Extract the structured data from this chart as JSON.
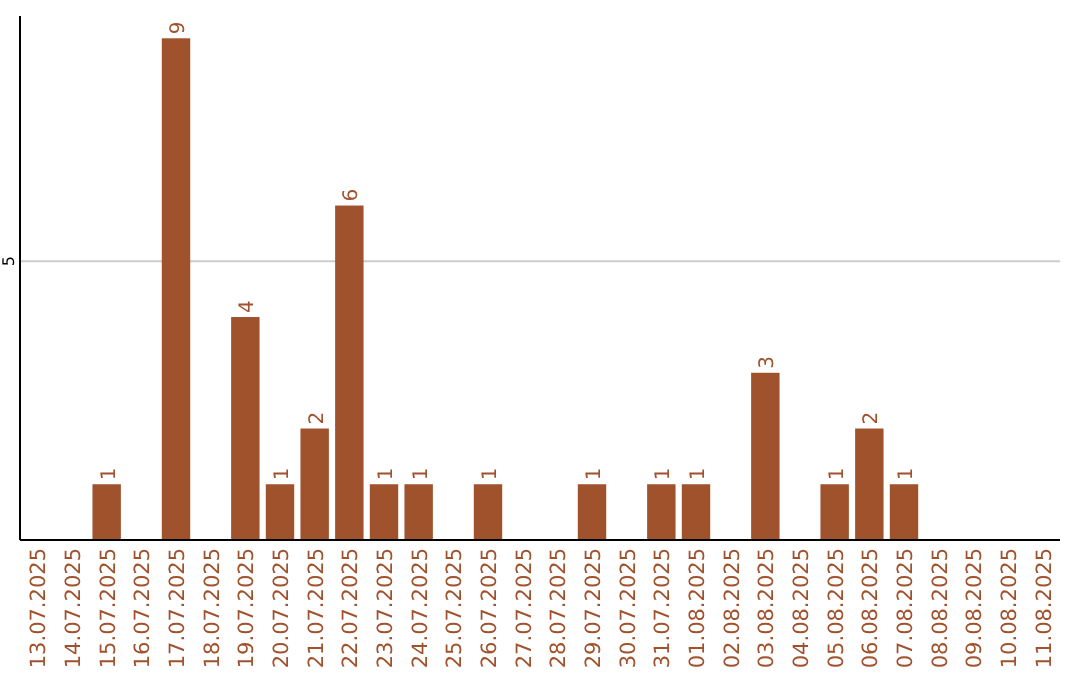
{
  "chart_data": {
    "type": "bar",
    "categories": [
      "13.07.2025",
      "14.07.2025",
      "15.07.2025",
      "16.07.2025",
      "17.07.2025",
      "18.07.2025",
      "19.07.2025",
      "20.07.2025",
      "21.07.2025",
      "22.07.2025",
      "23.07.2025",
      "24.07.2025",
      "25.07.2025",
      "26.07.2025",
      "27.07.2025",
      "28.07.2025",
      "29.07.2025",
      "30.07.2025",
      "31.07.2025",
      "01.08.2025",
      "02.08.2025",
      "03.08.2025",
      "04.08.2025",
      "05.08.2025",
      "06.08.2025",
      "07.08.2025",
      "08.08.2025",
      "09.08.2025",
      "10.08.2025",
      "11.08.2025"
    ],
    "values": [
      null,
      null,
      1,
      null,
      9,
      null,
      4,
      1,
      2,
      6,
      1,
      1,
      null,
      1,
      null,
      null,
      1,
      null,
      1,
      1,
      null,
      3,
      null,
      1,
      2,
      1,
      null,
      null,
      null,
      null
    ],
    "color": "#a0522d",
    "ylim": [
      0,
      9.4
    ],
    "yticks": [
      5
    ],
    "grid": "y",
    "data_labels": true
  }
}
